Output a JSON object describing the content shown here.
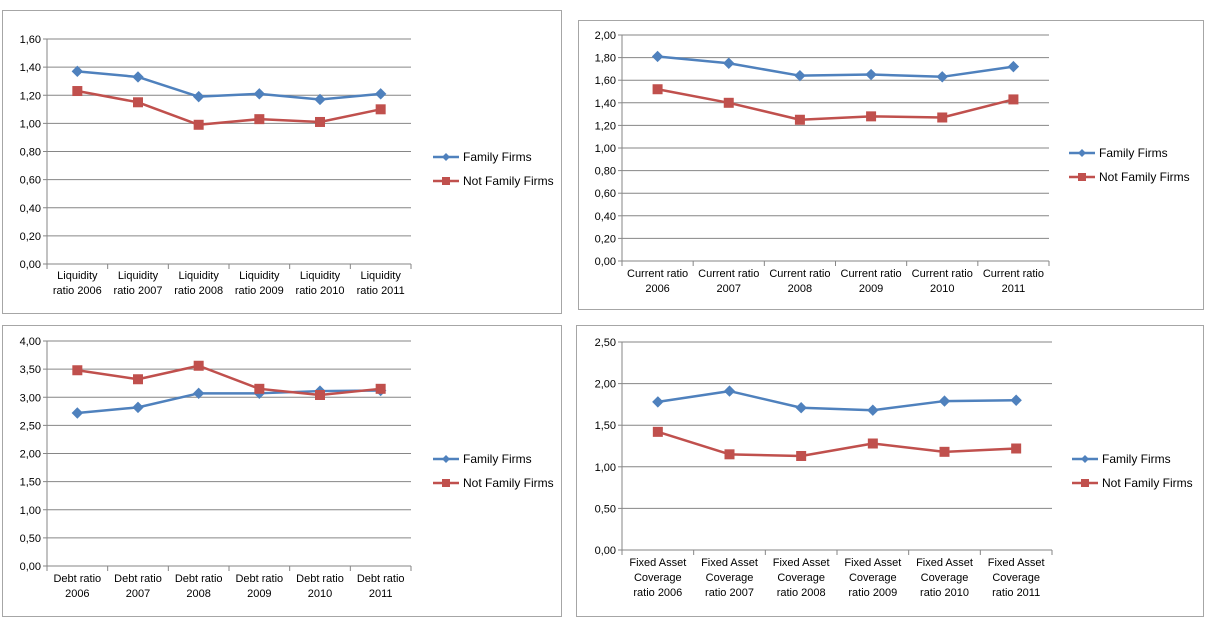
{
  "legend_labels": [
    "Family Firms",
    "Not Family Firms"
  ],
  "colors": {
    "family": "#4f81bd",
    "not_family": "#c0504d",
    "grid": "#868686"
  },
  "chart_data": [
    {
      "type": "line",
      "categories": [
        [
          "Liquidity",
          "ratio 2006"
        ],
        [
          "Liquidity",
          "ratio 2007"
        ],
        [
          "Liquidity",
          "ratio 2008"
        ],
        [
          "Liquidity",
          "ratio 2009"
        ],
        [
          "Liquidity",
          "ratio 2010"
        ],
        [
          "Liquidity",
          "ratio 2011"
        ]
      ],
      "ylim": [
        0,
        1.6
      ],
      "yticks": [
        "0,00",
        "0,20",
        "0,40",
        "0,60",
        "0,80",
        "1,00",
        "1,20",
        "1,40",
        "1,60"
      ],
      "series": [
        {
          "name": "Family Firms",
          "values": [
            1.37,
            1.33,
            1.19,
            1.21,
            1.17,
            1.21
          ]
        },
        {
          "name": "Not Family Firms",
          "values": [
            1.23,
            1.15,
            0.99,
            1.03,
            1.01,
            1.1
          ]
        }
      ],
      "grid": true,
      "legend": "right"
    },
    {
      "type": "line",
      "categories": [
        [
          "Current ratio",
          "2006"
        ],
        [
          "Current ratio",
          "2007"
        ],
        [
          "Current ratio",
          "2008"
        ],
        [
          "Current ratio",
          "2009"
        ],
        [
          "Current ratio",
          "2010"
        ],
        [
          "Current ratio",
          "2011"
        ]
      ],
      "ylim": [
        0,
        2.0
      ],
      "yticks": [
        "0,00",
        "0,20",
        "0,40",
        "0,60",
        "0,80",
        "1,00",
        "1,20",
        "1,40",
        "1,60",
        "1,80",
        "2,00"
      ],
      "series": [
        {
          "name": "Family Firms",
          "values": [
            1.81,
            1.75,
            1.64,
            1.65,
            1.63,
            1.72
          ]
        },
        {
          "name": "Not Family Firms",
          "values": [
            1.52,
            1.4,
            1.25,
            1.28,
            1.27,
            1.43
          ]
        }
      ],
      "grid": true,
      "legend": "right"
    },
    {
      "type": "line",
      "categories": [
        [
          "Debt ratio",
          "2006"
        ],
        [
          "Debt ratio",
          "2007"
        ],
        [
          "Debt ratio",
          "2008"
        ],
        [
          "Debt ratio",
          "2009"
        ],
        [
          "Debt ratio",
          "2010"
        ],
        [
          "Debt ratio",
          "2011"
        ]
      ],
      "ylim": [
        0,
        4.0
      ],
      "yticks": [
        "0,00",
        "0,50",
        "1,00",
        "1,50",
        "2,00",
        "2,50",
        "3,00",
        "3,50",
        "4,00"
      ],
      "series": [
        {
          "name": "Family Firms",
          "values": [
            2.72,
            2.82,
            3.07,
            3.07,
            3.11,
            3.12
          ]
        },
        {
          "name": "Not Family Firms",
          "values": [
            3.48,
            3.32,
            3.56,
            3.15,
            3.04,
            3.15
          ]
        }
      ],
      "grid": true,
      "legend": "right"
    },
    {
      "type": "line",
      "categories": [
        [
          "Fixed Asset",
          "Coverage",
          "ratio 2006"
        ],
        [
          "Fixed Asset",
          "Coverage",
          "ratio 2007"
        ],
        [
          "Fixed Asset",
          "Coverage",
          "ratio 2008"
        ],
        [
          "Fixed Asset",
          "Coverage",
          "ratio 2009"
        ],
        [
          "Fixed Asset",
          "Coverage",
          "ratio 2010"
        ],
        [
          "Fixed Asset",
          "Coverage",
          "ratio 2011"
        ]
      ],
      "ylim": [
        0,
        2.5
      ],
      "yticks": [
        "0,00",
        "0,50",
        "1,00",
        "1,50",
        "2,00",
        "2,50"
      ],
      "series": [
        {
          "name": "Family Firms",
          "values": [
            1.78,
            1.91,
            1.71,
            1.68,
            1.79,
            1.8
          ]
        },
        {
          "name": "Not Family Firms",
          "values": [
            1.42,
            1.15,
            1.13,
            1.28,
            1.18,
            1.22
          ]
        }
      ],
      "grid": true,
      "legend": "right"
    }
  ]
}
